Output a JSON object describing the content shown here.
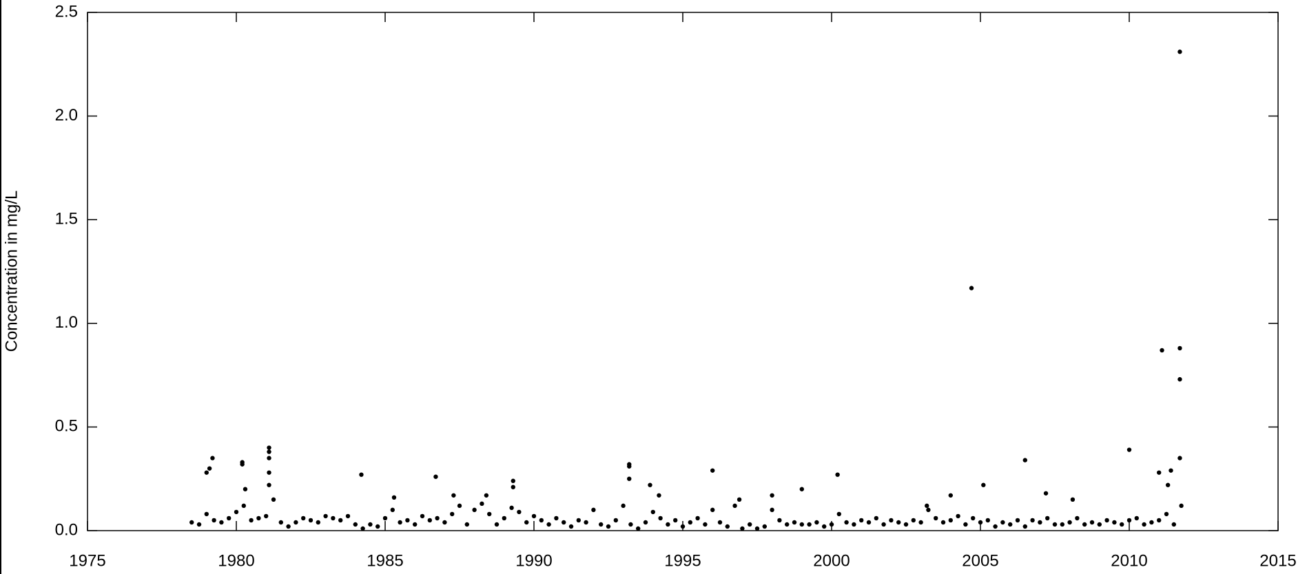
{
  "chart_data": {
    "type": "scatter",
    "y_label": "Concentration in mg/L",
    "color": "#000000",
    "xlim": [
      1975,
      2015
    ],
    "xticks": [
      1975,
      1980,
      1985,
      1990,
      1995,
      2000,
      2005,
      2010,
      2015
    ],
    "ylim": [
      0,
      2.5
    ],
    "yticks": [
      {
        "value": 0,
        "label": "0.0"
      },
      0.5,
      {
        "value": 1,
        "label": "1.0"
      },
      1.5,
      {
        "value": 2,
        "label": "2.0"
      },
      2.5
    ],
    "x": [
      1979.0,
      1979.1,
      1979.2,
      1980.2,
      1980.2,
      1980.3,
      1981.1,
      1981.1,
      1981.1,
      1981.1,
      1981.1,
      1984.2,
      1986.7,
      1989.3,
      1989.3,
      1993.2,
      1993.2,
      1993.2,
      1993.9,
      1996.0,
      2000.2,
      2004.7,
      2005.1,
      2006.5,
      2010.0,
      2011.1,
      2011.7,
      2011.7,
      2011.7,
      2011.7,
      2011.0,
      2011.4,
      2011.3,
      1998.0,
      1999.0,
      2003.2,
      2004.0,
      2007.2,
      2008.1,
      1987.3,
      1988.4,
      1985.3,
      1994.2,
      1996.9,
      1978.5,
      1978.75,
      1979,
      1979.25,
      1979.5,
      1979.75,
      1980,
      1980.25,
      1980.5,
      1980.75,
      1981,
      1981.25,
      1981.5,
      1981.75,
      1982,
      1982.25,
      1982.5,
      1982.75,
      1983,
      1983.25,
      1983.5,
      1983.75,
      1984,
      1984.25,
      1984.5,
      1984.75,
      1985,
      1985.25,
      1985.5,
      1985.75,
      1986,
      1986.25,
      1986.5,
      1986.75,
      1987,
      1987.25,
      1987.5,
      1987.75,
      1988,
      1988.25,
      1988.5,
      1988.75,
      1989,
      1989.25,
      1989.5,
      1989.75,
      1990,
      1990.25,
      1990.5,
      1990.75,
      1991,
      1991.25,
      1991.5,
      1991.75,
      1992,
      1992.25,
      1992.5,
      1992.75,
      1993,
      1993.25,
      1993.5,
      1993.75,
      1994,
      1994.25,
      1994.5,
      1994.75,
      1995,
      1995.25,
      1995.5,
      1995.75,
      1996,
      1996.25,
      1996.5,
      1996.75,
      1997,
      1997.25,
      1997.5,
      1997.75,
      1998,
      1998.25,
      1998.5,
      1998.75,
      1999,
      1999.25,
      1999.5,
      1999.75,
      2000,
      2000.25,
      2000.5,
      2000.75,
      2001,
      2001.25,
      2001.5,
      2001.75,
      2002,
      2002.25,
      2002.5,
      2002.75,
      2003,
      2003.25,
      2003.5,
      2003.75,
      2004,
      2004.25,
      2004.5,
      2004.75,
      2005,
      2005.25,
      2005.5,
      2005.75,
      2006,
      2006.25,
      2006.5,
      2006.75,
      2007,
      2007.25,
      2007.5,
      2007.75,
      2008,
      2008.25,
      2008.5,
      2008.75,
      2009,
      2009.25,
      2009.5,
      2009.75,
      2010,
      2010.25,
      2010.5,
      2010.75,
      2011,
      2011.25,
      2011.5,
      2011.75
    ],
    "values": [
      0.28,
      0.3,
      0.35,
      0.33,
      0.32,
      0.2,
      0.4,
      0.38,
      0.35,
      0.28,
      0.22,
      0.27,
      0.26,
      0.24,
      0.21,
      0.32,
      0.31,
      0.25,
      0.22,
      0.29,
      0.27,
      1.17,
      0.22,
      0.34,
      0.39,
      0.87,
      2.31,
      0.88,
      0.73,
      0.35,
      0.28,
      0.29,
      0.22,
      0.17,
      0.2,
      0.12,
      0.17,
      0.18,
      0.15,
      0.17,
      0.17,
      0.16,
      0.17,
      0.15,
      0.04,
      0.03,
      0.08,
      0.05,
      0.04,
      0.06,
      0.09,
      0.12,
      0.05,
      0.06,
      0.07,
      0.15,
      0.04,
      0.02,
      0.04,
      0.06,
      0.05,
      0.04,
      0.07,
      0.06,
      0.05,
      0.07,
      0.03,
      0.01,
      0.03,
      0.02,
      0.06,
      0.1,
      0.04,
      0.05,
      0.03,
      0.07,
      0.05,
      0.06,
      0.04,
      0.08,
      0.12,
      0.03,
      0.1,
      0.13,
      0.08,
      0.03,
      0.06,
      0.11,
      0.09,
      0.04,
      0.07,
      0.05,
      0.03,
      0.06,
      0.04,
      0.02,
      0.05,
      0.04,
      0.1,
      0.03,
      0.02,
      0.05,
      0.12,
      0.03,
      0.01,
      0.04,
      0.09,
      0.06,
      0.03,
      0.05,
      0.02,
      0.04,
      0.06,
      0.03,
      0.1,
      0.04,
      0.02,
      0.12,
      0.01,
      0.03,
      0.01,
      0.02,
      0.1,
      0.05,
      0.03,
      0.04,
      0.03,
      0.03,
      0.04,
      0.02,
      0.03,
      0.08,
      0.04,
      0.03,
      0.05,
      0.04,
      0.06,
      0.03,
      0.05,
      0.04,
      0.03,
      0.05,
      0.04,
      0.1,
      0.06,
      0.04,
      0.05,
      0.07,
      0.03,
      0.06,
      0.04,
      0.05,
      0.02,
      0.04,
      0.03,
      0.05,
      0.02,
      0.05,
      0.04,
      0.06,
      0.03,
      0.03,
      0.04,
      0.06,
      0.03,
      0.04,
      0.03,
      0.05,
      0.04,
      0.03,
      0.05,
      0.06,
      0.03,
      0.04,
      0.05,
      0.08,
      0.03,
      0.12
    ]
  }
}
